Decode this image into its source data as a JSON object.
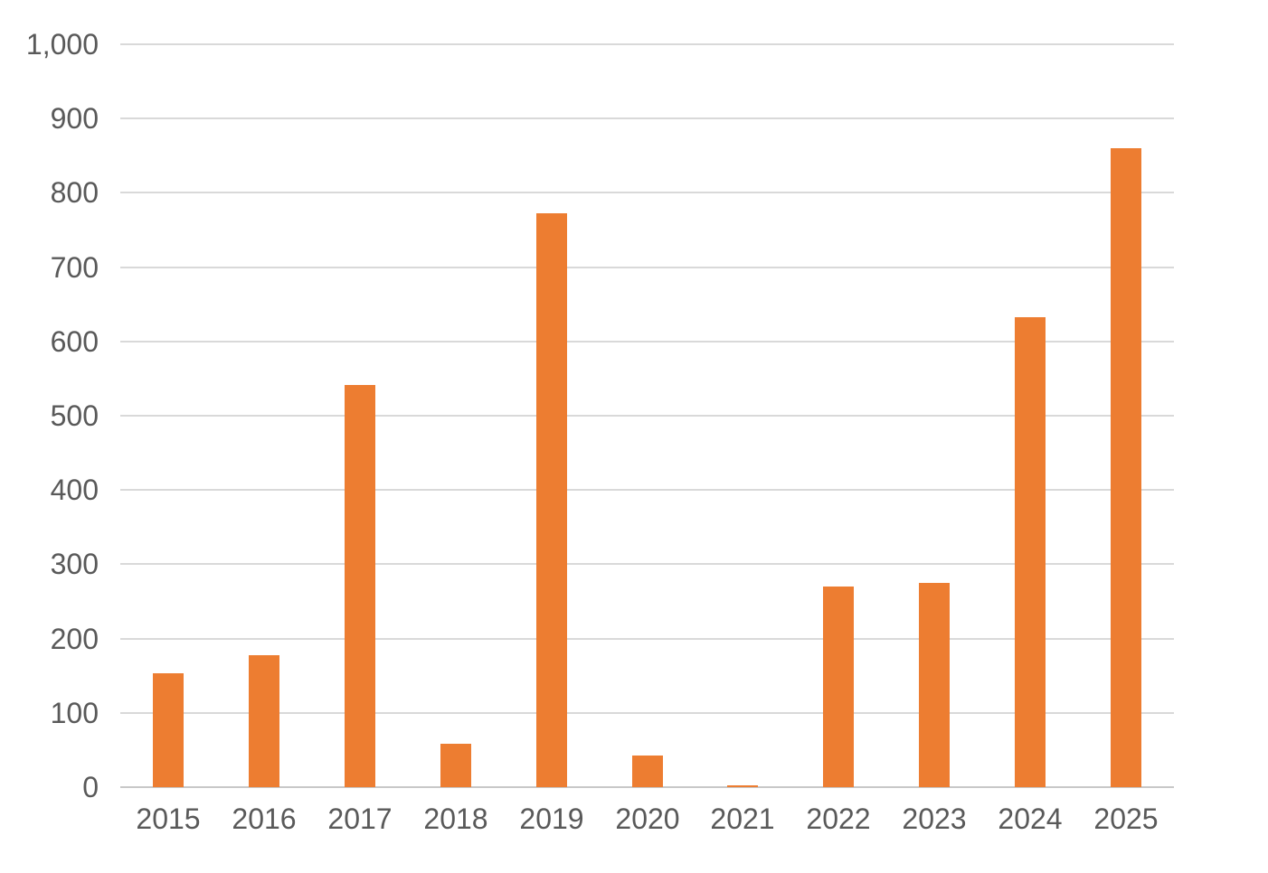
{
  "chart_data": {
    "type": "bar",
    "title": "",
    "xlabel": "",
    "ylabel": "",
    "categories": [
      "2015",
      "2016",
      "2017",
      "2018",
      "2019",
      "2020",
      "2021",
      "2022",
      "2023",
      "2024",
      "2025"
    ],
    "values": [
      153,
      178,
      541,
      58,
      773,
      43,
      2,
      270,
      275,
      632,
      860
    ],
    "ylim": [
      0,
      1000
    ],
    "yticks": [
      {
        "value": 0,
        "label": "0"
      },
      {
        "value": 100,
        "label": "100"
      },
      {
        "value": 200,
        "label": "200"
      },
      {
        "value": 300,
        "label": "300"
      },
      {
        "value": 400,
        "label": "400"
      },
      {
        "value": 500,
        "label": "500"
      },
      {
        "value": 600,
        "label": "600"
      },
      {
        "value": 700,
        "label": "700"
      },
      {
        "value": 800,
        "label": "800"
      },
      {
        "value": 900,
        "label": "900"
      },
      {
        "value": 1000,
        "label": "1,000"
      }
    ],
    "grid": "horizontal",
    "legend": "none",
    "colors": {
      "bar": "#ed7d31",
      "text": "#595959",
      "gridline": "#d9d9d9",
      "axis_line": "#c8c8c8",
      "background": "#ffffff"
    }
  }
}
